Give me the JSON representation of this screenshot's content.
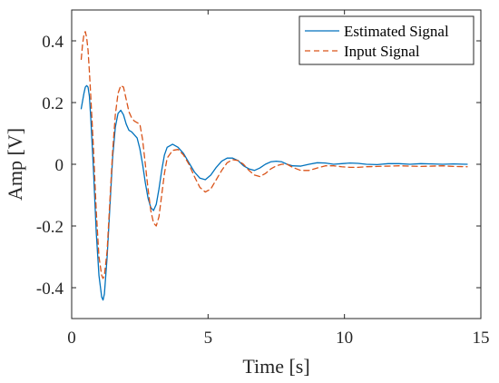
{
  "chart_data": {
    "type": "line",
    "title": "",
    "xlabel": "Time [s]",
    "ylabel": "Amp [V]",
    "xlim": [
      0,
      15
    ],
    "ylim": [
      -0.5,
      0.5
    ],
    "x_ticks": [
      0,
      5,
      10,
      15
    ],
    "x_tick_labels": [
      "0",
      "5",
      "10",
      "15"
    ],
    "y_ticks": [
      -0.4,
      -0.2,
      0,
      0.2,
      0.4
    ],
    "y_tick_labels": [
      "-0.4",
      "-0.2",
      "0",
      "0.2",
      "0.4"
    ],
    "grid": false,
    "box": true,
    "legend_position": "top-right",
    "series": [
      {
        "name": "Estimated Signal",
        "color": "#0072BD",
        "line_style": "solid",
        "x": [
          0.35,
          0.45,
          0.5,
          0.55,
          0.6,
          0.65,
          0.7,
          0.8,
          0.9,
          1.0,
          1.1,
          1.15,
          1.2,
          1.3,
          1.4,
          1.5,
          1.6,
          1.7,
          1.8,
          1.9,
          2.0,
          2.1,
          2.2,
          2.4,
          2.5,
          2.6,
          2.7,
          2.8,
          2.9,
          3.0,
          3.1,
          3.2,
          3.3,
          3.4,
          3.5,
          3.7,
          3.9,
          4.1,
          4.3,
          4.5,
          4.7,
          4.9,
          5.1,
          5.3,
          5.5,
          5.7,
          5.9,
          6.1,
          6.3,
          6.5,
          6.7,
          6.9,
          7.1,
          7.3,
          7.5,
          7.7,
          7.9,
          8.1,
          8.4,
          8.7,
          9.0,
          9.3,
          9.6,
          9.9,
          10.2,
          10.5,
          10.8,
          11.2,
          11.6,
          12.0,
          12.4,
          12.8,
          13.2,
          13.6,
          14.0,
          14.5
        ],
        "y": [
          0.18,
          0.23,
          0.25,
          0.255,
          0.25,
          0.22,
          0.15,
          -0.02,
          -0.22,
          -0.36,
          -0.43,
          -0.44,
          -0.42,
          -0.3,
          -0.14,
          0.02,
          0.12,
          0.165,
          0.175,
          0.16,
          0.13,
          0.11,
          0.105,
          0.085,
          0.05,
          0.0,
          -0.06,
          -0.11,
          -0.14,
          -0.15,
          -0.13,
          -0.08,
          -0.02,
          0.03,
          0.055,
          0.065,
          0.055,
          0.035,
          0.005,
          -0.025,
          -0.045,
          -0.05,
          -0.035,
          -0.01,
          0.01,
          0.02,
          0.02,
          0.012,
          -0.005,
          -0.015,
          -0.02,
          -0.012,
          0.0,
          0.008,
          0.01,
          0.008,
          0.0,
          -0.005,
          -0.006,
          0.0,
          0.005,
          0.004,
          0.0,
          0.002,
          0.004,
          0.003,
          0.0,
          -0.001,
          0.002,
          0.002,
          0.0,
          0.002,
          0.001,
          0.0,
          0.001,
          0.0
        ]
      },
      {
        "name": "Input Signal",
        "color": "#D95319",
        "line_style": "dashed",
        "x": [
          0.35,
          0.4,
          0.45,
          0.5,
          0.55,
          0.6,
          0.65,
          0.7,
          0.8,
          0.9,
          1.0,
          1.1,
          1.15,
          1.2,
          1.3,
          1.4,
          1.5,
          1.6,
          1.7,
          1.8,
          1.9,
          2.0,
          2.1,
          2.2,
          2.3,
          2.5,
          2.6,
          2.7,
          2.8,
          2.9,
          3.0,
          3.1,
          3.2,
          3.3,
          3.4,
          3.5,
          3.7,
          3.9,
          4.1,
          4.3,
          4.5,
          4.7,
          4.9,
          5.1,
          5.3,
          5.5,
          5.7,
          5.9,
          6.1,
          6.3,
          6.5,
          6.7,
          6.9,
          7.1,
          7.3,
          7.5,
          7.7,
          7.9,
          8.1,
          8.4,
          8.7,
          9.0,
          9.3,
          9.6,
          9.9,
          10.2,
          10.5,
          10.8,
          11.2,
          11.6,
          12.0,
          12.4,
          12.8,
          13.2,
          13.6,
          14.0,
          14.5
        ],
        "y": [
          0.34,
          0.39,
          0.42,
          0.43,
          0.41,
          0.37,
          0.3,
          0.22,
          0.05,
          -0.15,
          -0.3,
          -0.36,
          -0.37,
          -0.36,
          -0.28,
          -0.12,
          0.04,
          0.16,
          0.23,
          0.255,
          0.25,
          0.21,
          0.17,
          0.15,
          0.14,
          0.13,
          0.08,
          0.0,
          -0.08,
          -0.15,
          -0.19,
          -0.2,
          -0.17,
          -0.1,
          -0.03,
          0.02,
          0.045,
          0.048,
          0.03,
          0.0,
          -0.04,
          -0.075,
          -0.09,
          -0.08,
          -0.05,
          -0.02,
          0.005,
          0.015,
          0.012,
          0.0,
          -0.02,
          -0.035,
          -0.04,
          -0.03,
          -0.015,
          -0.005,
          0.0,
          0.0,
          -0.01,
          -0.02,
          -0.02,
          -0.012,
          -0.005,
          -0.005,
          -0.008,
          -0.01,
          -0.01,
          -0.008,
          -0.007,
          -0.006,
          -0.005,
          -0.006,
          -0.007,
          -0.006,
          -0.005,
          -0.007,
          -0.008
        ]
      }
    ]
  }
}
